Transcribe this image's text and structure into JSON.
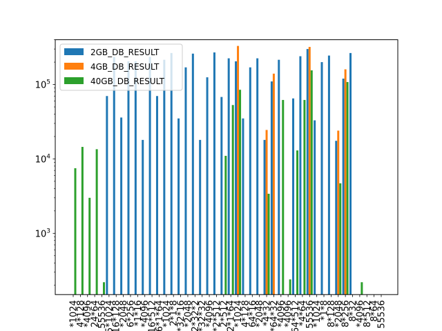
{
  "chart_data": {
    "type": "bar",
    "scale": "log",
    "ylim": [
      150,
      400000
    ],
    "y_ticks": [
      {
        "value": 1000,
        "base": "10",
        "exp": "3"
      },
      {
        "value": 10000,
        "base": "10",
        "exp": "4"
      },
      {
        "value": 100000,
        "base": "10",
        "exp": "5"
      }
    ],
    "categories": [
      "*1024",
      "4*128",
      "*4096",
      "24*64",
      "55536",
      "5*1024",
      "16*128",
      "*2048",
      "6*256",
      "*1*16",
      "*4096",
      "16*512",
      "6*1*64",
      "*1024",
      "2*1*8",
      "*32*16",
      "*2048",
      "2*32*2",
      "*32*32",
      "*4096",
      "*2*512",
      "2*512",
      "32*1*64",
      "*1024",
      "4*128",
      "64*16",
      "*2048",
      "*4*32",
      "4*64*32",
      "*4096",
      "*4096",
      "64*512",
      "*4*64",
      "55536",
      "*1024",
      "*1*8",
      "8*128",
      "*2048",
      "8*256",
      "8*32",
      "*4096",
      "8*512",
      "8*64",
      "55536"
    ],
    "series": [
      {
        "name": "2GB_DB_RESULT",
        "color": "#1f77b4",
        "values": [
          null,
          null,
          null,
          null,
          null,
          70000,
          235000,
          36000,
          205000,
          205000,
          18000,
          235000,
          70000,
          215000,
          265000,
          35000,
          170000,
          260000,
          18000,
          125000,
          270000,
          68000,
          225000,
          205000,
          35000,
          170000,
          225000,
          18000,
          110000,
          215000,
          null,
          65000,
          240000,
          300000,
          33000,
          200000,
          245000,
          17500,
          120000,
          265000,
          null,
          null,
          null,
          null
        ]
      },
      {
        "name": "4GB_DB_RESULT",
        "color": "#ff7f0e",
        "values": [
          null,
          null,
          null,
          null,
          null,
          null,
          null,
          null,
          null,
          null,
          null,
          null,
          null,
          null,
          null,
          null,
          null,
          null,
          null,
          null,
          null,
          null,
          null,
          330000,
          null,
          null,
          null,
          24500,
          140000,
          null,
          null,
          null,
          null,
          320000,
          null,
          null,
          null,
          24000,
          160000,
          null,
          null,
          null,
          null,
          null
        ]
      },
      {
        "name": "40GB_DB_RESULT",
        "color": "#2ca02c",
        "values": [
          7500,
          14500,
          3000,
          13500,
          220,
          null,
          null,
          null,
          null,
          null,
          null,
          null,
          null,
          null,
          null,
          null,
          null,
          null,
          null,
          null,
          null,
          11000,
          53000,
          85000,
          null,
          null,
          null,
          3400,
          null,
          62000,
          240,
          13000,
          62000,
          155000,
          null,
          null,
          null,
          4700,
          108000,
          null,
          220,
          null,
          null,
          null
        ]
      }
    ],
    "legend": "upper-left"
  }
}
